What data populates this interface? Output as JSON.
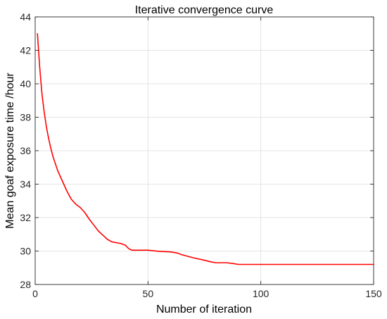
{
  "chart_data": {
    "type": "line",
    "title": "Iterative convergence curve",
    "xlabel": "Number of iteration",
    "ylabel": "Mean goaf exposure time /hour",
    "xlim": [
      0,
      150
    ],
    "ylim": [
      28,
      44
    ],
    "xticks": [
      0,
      50,
      100,
      150
    ],
    "yticks": [
      28,
      30,
      32,
      34,
      36,
      38,
      40,
      42,
      44
    ],
    "grid": true,
    "series": [
      {
        "color": "#ff0000",
        "x": [
          1,
          2,
          3,
          4,
          5,
          6,
          7,
          8,
          9,
          10,
          12,
          14,
          16,
          18,
          20,
          22,
          24,
          26,
          28,
          30,
          32,
          34,
          36,
          38,
          40,
          41,
          42,
          43,
          45,
          50,
          55,
          60,
          63,
          65,
          70,
          75,
          78,
          80,
          85,
          88,
          90,
          100,
          120,
          150
        ],
        "y": [
          43.0,
          41.0,
          39.4,
          38.3,
          37.4,
          36.7,
          36.1,
          35.6,
          35.2,
          34.8,
          34.2,
          33.6,
          33.1,
          32.8,
          32.6,
          32.3,
          31.9,
          31.55,
          31.2,
          30.95,
          30.7,
          30.55,
          30.5,
          30.45,
          30.35,
          30.2,
          30.1,
          30.05,
          30.05,
          30.05,
          29.98,
          29.95,
          29.88,
          29.78,
          29.6,
          29.45,
          29.35,
          29.3,
          29.3,
          29.25,
          29.2,
          29.2,
          29.2,
          29.2
        ]
      }
    ]
  }
}
